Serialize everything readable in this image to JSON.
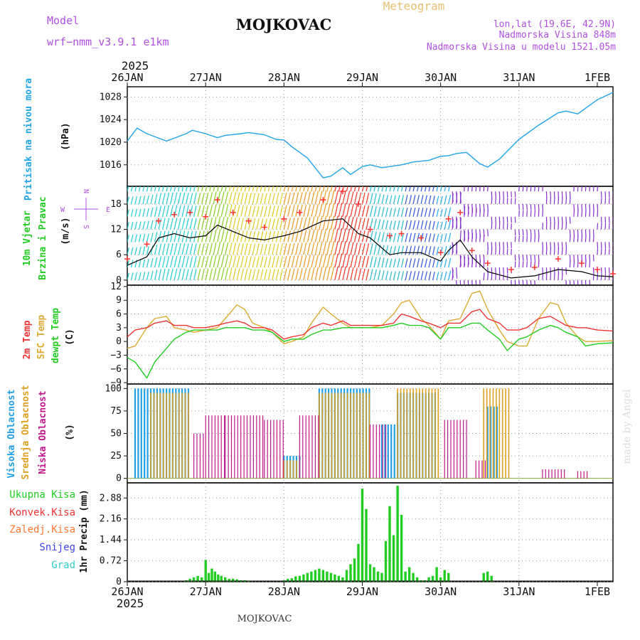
{
  "header": {
    "model_label": "Model",
    "model_name": "wrf−nmm_v3.9.1  e1km",
    "station": "MOJKOVAC",
    "meteogram": "Meteogram",
    "lonlat": "lon,lat (19.6E, 42.9N)",
    "altitude": "Nadmorska Visina 848m",
    "model_altitude": "Nadmorska Visina u modelu 1521.05m",
    "credit": "made by Angel",
    "footer_station": "MOJKOVAC"
  },
  "time_axis": {
    "year": "2025",
    "labels": [
      "26JAN",
      "27JAN",
      "28JAN",
      "29JAN",
      "30JAN",
      "31JAN",
      "1FEB"
    ]
  },
  "colors": {
    "pressure": "#22a4e8",
    "t2m": "#ee3333",
    "sfc": "#ddaa33",
    "dewpt": "#22cc22",
    "high_cloud": "#22a0e6",
    "mid_cloud": "#e0a020",
    "low_cloud": "#c0188a",
    "total_precip": "#22cc22",
    "conv_precip": "#ee3333",
    "frz_precip": "#ff7733",
    "snow": "#4444ee",
    "hail": "#33cccc",
    "wind_speed": "#000000",
    "gust": "#ff3333",
    "legend_purple": "#b050e0"
  },
  "chart_data": [
    {
      "panel": "pressure",
      "type": "line",
      "ylabel_lines": [
        "Pritisak na nivou mora",
        "(hPa)"
      ],
      "ylim": [
        1012.2,
        1029.8
      ],
      "yticks": [
        "1016",
        "1020",
        "1024",
        "1028"
      ],
      "ytick_values": [
        1016,
        1020,
        1024,
        1028
      ],
      "x_days": [
        0.0,
        0.125,
        0.25,
        0.5,
        0.75,
        0.83,
        1.0,
        1.15,
        1.25,
        1.45,
        1.55,
        1.75,
        1.9,
        2.0,
        2.1,
        2.3,
        2.5,
        2.6,
        2.75,
        2.85,
        3.0,
        3.1,
        3.25,
        3.5,
        3.65,
        3.85,
        4.0,
        4.1,
        4.2,
        4.33,
        4.5,
        4.6,
        4.75,
        5.0,
        5.25,
        5.5,
        5.6,
        5.75,
        6.0,
        6.2
      ],
      "series": [
        {
          "values": [
            1020.2,
            1022.5,
            1021.5,
            1020.2,
            1021.5,
            1022.1,
            1021.5,
            1020.8,
            1021.2,
            1021.5,
            1021.7,
            1021.3,
            1020.5,
            1020.4,
            1019.2,
            1017.2,
            1013.7,
            1014.0,
            1015.5,
            1014.3,
            1015.7,
            1016.0,
            1015.5,
            1016.0,
            1016.5,
            1016.8,
            1017.5,
            1017.6,
            1018.0,
            1018.2,
            1016.2,
            1015.6,
            1017.0,
            1020.5,
            1023.0,
            1025.2,
            1025.5,
            1025.0,
            1027.5,
            1028.8
          ]
        }
      ]
    },
    {
      "panel": "wind",
      "type": "line",
      "ylabel_lines": [
        "10m Vjetar",
        "Brzina i Pravac",
        "(m/s)"
      ],
      "compass": [
        "N",
        "W",
        "E",
        "S"
      ],
      "ylim": [
        -1.2,
        22.2
      ],
      "yticks": [
        "0",
        "6",
        "12",
        "18"
      ],
      "ytick_values": [
        0,
        6,
        12,
        18
      ],
      "x_days": [
        0.0,
        0.25,
        0.4,
        0.6,
        0.8,
        1.0,
        1.15,
        1.35,
        1.55,
        1.75,
        2.0,
        2.2,
        2.5,
        2.75,
        2.95,
        3.1,
        3.35,
        3.5,
        3.75,
        4.0,
        4.1,
        4.25,
        4.4,
        4.6,
        4.9,
        5.2,
        5.5,
        5.8,
        6.0,
        6.2
      ],
      "series": [
        {
          "name": "speed",
          "values": [
            3.5,
            5.5,
            10.0,
            11.0,
            10.0,
            10.5,
            13.0,
            11.5,
            10.0,
            9.5,
            10.5,
            11.5,
            14.0,
            14.5,
            11.0,
            10.0,
            6.0,
            6.5,
            6.5,
            4.5,
            7.0,
            9.5,
            5.5,
            2.0,
            0.5,
            1.0,
            2.5,
            2.0,
            1.0,
            0.8
          ]
        },
        {
          "name": "gust",
          "values": [
            5.0,
            8.5,
            14.0,
            15.5,
            16.0,
            15.0,
            19.0,
            16.0,
            14.0,
            12.5,
            14.5,
            16.0,
            19.0,
            21.0,
            18.0,
            12.0,
            10.5,
            11.0,
            10.0,
            6.5,
            14.5,
            16.0,
            7.0,
            4.0,
            2.5,
            3.0,
            5.0,
            4.0,
            2.5,
            1.5
          ]
        }
      ]
    },
    {
      "panel": "temperature",
      "type": "line",
      "ylabel_lines": [
        "2m Temp",
        "SFC Temp",
        "dewpt Temp",
        "(C)"
      ],
      "ylim": [
        -9.3,
        12.3
      ],
      "yticks": [
        "−9",
        "−6",
        "−3",
        "0",
        "3",
        "6",
        "9",
        "12"
      ],
      "ytick_values": [
        -9,
        -6,
        -3,
        0,
        3,
        6,
        9,
        12
      ],
      "x_days": [
        0.0,
        0.1,
        0.25,
        0.35,
        0.5,
        0.6,
        0.75,
        0.85,
        1.0,
        1.15,
        1.25,
        1.4,
        1.5,
        1.6,
        1.75,
        1.85,
        2.0,
        2.1,
        2.25,
        2.35,
        2.5,
        2.6,
        2.75,
        2.85,
        3.0,
        3.1,
        3.25,
        3.4,
        3.5,
        3.6,
        3.75,
        3.85,
        4.0,
        4.1,
        4.25,
        4.4,
        4.5,
        4.6,
        4.75,
        4.85,
        5.0,
        5.1,
        5.25,
        5.4,
        5.5,
        5.6,
        5.75,
        5.85,
        6.0,
        6.2
      ],
      "series": [
        {
          "name": "2m",
          "values": [
            1.0,
            2.5,
            3.0,
            4.0,
            4.5,
            3.5,
            3.5,
            3.0,
            3.0,
            3.5,
            4.0,
            4.5,
            4.0,
            3.0,
            3.0,
            2.5,
            0.5,
            1.0,
            1.5,
            3.0,
            4.0,
            3.5,
            4.5,
            3.5,
            3.5,
            3.5,
            3.5,
            4.0,
            6.0,
            5.5,
            4.5,
            4.0,
            3.0,
            4.0,
            4.0,
            6.5,
            7.0,
            5.0,
            4.0,
            2.5,
            2.5,
            3.0,
            5.0,
            5.5,
            4.5,
            3.5,
            3.0,
            3.0,
            2.5,
            2.3
          ]
        },
        {
          "name": "sfc",
          "values": [
            -1.5,
            -1.0,
            3.0,
            5.0,
            5.5,
            3.0,
            2.5,
            2.0,
            2.5,
            3.0,
            5.0,
            8.0,
            7.0,
            4.0,
            3.0,
            2.0,
            -0.5,
            0.0,
            1.0,
            4.0,
            7.5,
            6.0,
            4.0,
            3.0,
            3.0,
            3.0,
            3.5,
            6.0,
            8.5,
            9.0,
            5.0,
            3.5,
            0.5,
            4.5,
            5.0,
            10.5,
            11.0,
            7.0,
            2.5,
            0.0,
            -1.0,
            -1.0,
            5.0,
            8.5,
            8.0,
            4.0,
            1.0,
            0.0,
            0.0,
            0.2
          ]
        },
        {
          "name": "dewpt",
          "values": [
            -3.5,
            -4.5,
            -8.0,
            -4.5,
            -1.5,
            0.5,
            2.0,
            2.5,
            2.5,
            2.5,
            3.0,
            3.0,
            3.0,
            2.5,
            2.5,
            2.0,
            0.0,
            0.5,
            0.5,
            1.5,
            2.5,
            2.5,
            3.0,
            3.0,
            3.0,
            3.0,
            3.0,
            3.5,
            4.0,
            3.5,
            3.5,
            3.0,
            0.5,
            3.0,
            3.0,
            4.0,
            4.0,
            2.5,
            0.5,
            -2.0,
            0.5,
            1.0,
            2.5,
            3.5,
            3.0,
            2.0,
            1.0,
            -1.0,
            -0.5,
            -0.3
          ]
        }
      ]
    },
    {
      "panel": "clouds",
      "type": "bar",
      "ylabel_lines": [
        "Visoka Oblacnost",
        "Srednja Oblacnost",
        "Niska Oblacnost",
        "(%)"
      ],
      "ylim": [
        -5,
        105
      ],
      "yticks": [
        "0",
        "25",
        "50",
        "75",
        "100"
      ],
      "ytick_values": [
        0,
        25,
        50,
        75,
        100
      ],
      "series": [
        {
          "name": "high",
          "ranges": [
            [
              0.1,
              0.8,
              100
            ],
            [
              2.0,
              2.2,
              25
            ],
            [
              2.45,
              3.1,
              100
            ],
            [
              3.25,
              3.45,
              60
            ],
            [
              3.45,
              3.95,
              95
            ],
            [
              4.6,
              4.75,
              80
            ]
          ]
        },
        {
          "name": "mid",
          "ranges": [
            [
              0.3,
              0.8,
              95
            ],
            [
              2.0,
              2.2,
              20
            ],
            [
              2.45,
              3.1,
              95
            ],
            [
              3.45,
              4.0,
              100
            ],
            [
              4.55,
              4.9,
              100
            ]
          ]
        },
        {
          "name": "low",
          "ranges": [
            [
              0.85,
              1.0,
              50
            ],
            [
              1.0,
              1.25,
              70
            ],
            [
              1.25,
              1.75,
              70
            ],
            [
              1.75,
              2.0,
              65
            ],
            [
              2.2,
              2.45,
              70
            ],
            [
              3.1,
              3.3,
              60
            ],
            [
              4.05,
              4.35,
              65
            ],
            [
              4.45,
              4.6,
              20
            ],
            [
              5.3,
              5.6,
              10
            ],
            [
              5.75,
              5.9,
              8
            ]
          ]
        }
      ]
    },
    {
      "panel": "precipitation",
      "type": "bar",
      "ylabel_lines": [
        "1hr Precip (mm)"
      ],
      "legend": [
        "Ukupna Kisa",
        "Konvek.Kisa",
        "Zaledj.Kisa",
        "Snijeg",
        "Grad"
      ],
      "ylim": [
        0,
        3.4
      ],
      "yticks": [
        "0",
        "0.72",
        "1.44",
        "2.16",
        "2.88"
      ],
      "ytick_values": [
        0,
        0.72,
        1.44,
        2.16,
        2.88
      ],
      "x_days": [
        0.75,
        0.8,
        0.85,
        0.9,
        0.95,
        1.0,
        1.04,
        1.08,
        1.12,
        1.16,
        1.2,
        1.25,
        1.3,
        1.35,
        1.4,
        1.45,
        1.5,
        1.55,
        2.0,
        2.05,
        2.1,
        2.15,
        2.2,
        2.25,
        2.3,
        2.35,
        2.4,
        2.45,
        2.5,
        2.55,
        2.6,
        2.65,
        2.7,
        2.75,
        2.8,
        2.85,
        2.9,
        2.95,
        3.0,
        3.05,
        3.1,
        3.15,
        3.2,
        3.25,
        3.3,
        3.35,
        3.4,
        3.45,
        3.5,
        3.55,
        3.6,
        3.65,
        3.7,
        3.75,
        3.8,
        3.85,
        3.9,
        3.95,
        4.0,
        4.05,
        4.1,
        4.55,
        4.6,
        4.65
      ],
      "series": [
        {
          "name": "Ukupna Kisa",
          "values": [
            0.05,
            0.1,
            0.15,
            0.2,
            0.15,
            0.75,
            0.3,
            0.45,
            0.35,
            0.25,
            0.2,
            0.15,
            0.1,
            0.1,
            0.08,
            0.05,
            0.05,
            0.03,
            0.05,
            0.1,
            0.12,
            0.18,
            0.2,
            0.25,
            0.3,
            0.35,
            0.4,
            0.45,
            0.4,
            0.35,
            0.3,
            0.25,
            0.2,
            0.15,
            0.4,
            0.6,
            0.8,
            1.3,
            3.2,
            2.5,
            0.6,
            0.5,
            0.35,
            0.3,
            1.4,
            2.6,
            1.6,
            3.3,
            2.3,
            0.35,
            0.5,
            0.3,
            0.15,
            0.05,
            0.05,
            0.15,
            0.2,
            0.5,
            0.15,
            0.4,
            0.3,
            0.3,
            0.35,
            0.2
          ]
        }
      ]
    }
  ]
}
